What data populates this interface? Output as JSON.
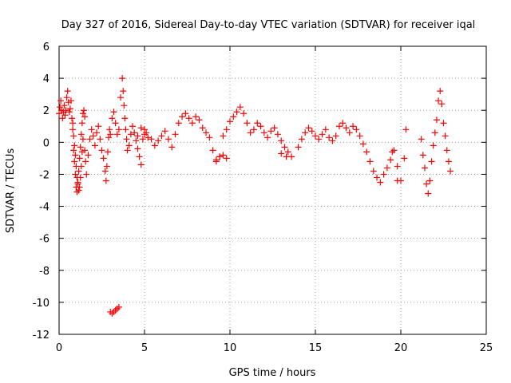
{
  "chart_data": {
    "type": "scatter",
    "title": "Day 327 of 2016, Sidereal Day-to-day VTEC variation (SDTVAR) for receiver iqal",
    "xlabel": "GPS time / hours",
    "ylabel": "SDTVAR / TECUs",
    "xlim": [
      0,
      25
    ],
    "ylim": [
      -12,
      6
    ],
    "xticks": [
      "0",
      "5",
      "10",
      "15",
      "20",
      "25"
    ],
    "yticks": [
      "6",
      "4",
      "2",
      "0",
      "-2",
      "-4",
      "-6",
      "-8",
      "-10",
      "-12"
    ],
    "grid": true,
    "marker": "+",
    "color": "#ff0000",
    "series": [
      {
        "name": "SDTVAR",
        "x": [
          0.0,
          0.05,
          0.1,
          0.15,
          0.2,
          0.25,
          0.3,
          0.35,
          0.4,
          0.45,
          0.5,
          0.55,
          0.6,
          0.65,
          0.7,
          0.75,
          0.8,
          0.85,
          0.9,
          0.95,
          1.0,
          1.05,
          1.1,
          1.15,
          1.2,
          1.25,
          1.3,
          1.35,
          1.4,
          1.45,
          1.5,
          0.8,
          0.85,
          0.9,
          0.95,
          1.0,
          1.05,
          1.1,
          1.15,
          1.2,
          1.25,
          1.3,
          1.35,
          1.4,
          1.5,
          1.55,
          1.6,
          1.7,
          1.8,
          1.9,
          2.0,
          2.1,
          2.2,
          2.3,
          2.4,
          2.5,
          2.6,
          2.7,
          2.75,
          2.8,
          2.85,
          2.9,
          2.95,
          3.0,
          3.1,
          3.2,
          3.3,
          3.4,
          3.5,
          3.6,
          3.7,
          3.75,
          3.8,
          3.85,
          3.9,
          3.95,
          4.0,
          4.1,
          4.2,
          4.3,
          4.4,
          4.5,
          4.6,
          4.7,
          4.8,
          4.9,
          5.0,
          5.1,
          5.2,
          5.4,
          5.6,
          5.8,
          6.0,
          6.2,
          6.4,
          6.6,
          6.8,
          7.0,
          7.2,
          7.4,
          7.6,
          7.8,
          8.0,
          8.2,
          8.4,
          8.6,
          8.8,
          9.0,
          9.2,
          9.4,
          9.6,
          9.8,
          10.0,
          10.2,
          10.4,
          10.6,
          10.8,
          11.0,
          11.2,
          11.4,
          11.6,
          11.8,
          12.0,
          12.2,
          12.4,
          12.6,
          12.8,
          13.0,
          13.2,
          13.4,
          13.6,
          14.0,
          14.2,
          14.4,
          14.6,
          14.8,
          15.0,
          15.2,
          15.4,
          15.6,
          15.8,
          16.0,
          16.2,
          16.4,
          16.6,
          16.8,
          17.0,
          17.2,
          17.4,
          17.6,
          17.8,
          18.0,
          18.2,
          18.4,
          18.6,
          18.8,
          19.0,
          19.2,
          19.4,
          19.6,
          19.8,
          20.0,
          20.2,
          20.3,
          21.2,
          21.3,
          21.4,
          21.5,
          21.6,
          21.7,
          21.8,
          21.9,
          22.0,
          22.1,
          22.2,
          22.3,
          22.4,
          22.5,
          22.6,
          22.7,
          22.8,
          22.9,
          3.0,
          3.1,
          3.2,
          3.3,
          3.4,
          3.5,
          9.2,
          9.4,
          9.6,
          9.8,
          13.0,
          13.3,
          19.5,
          19.8,
          4.6,
          4.8,
          5.0
        ],
        "y": [
          1.8,
          2.2,
          2.6,
          2.0,
          1.5,
          1.9,
          2.3,
          1.7,
          2.0,
          2.8,
          3.2,
          2.5,
          1.9,
          2.1,
          2.6,
          1.5,
          0.8,
          -0.5,
          -1.2,
          -2.0,
          -2.8,
          -3.1,
          -2.5,
          -1.8,
          -1.0,
          -0.3,
          0.5,
          1.2,
          1.8,
          2.0,
          1.6,
          1.2,
          0.4,
          -0.2,
          -0.8,
          -1.5,
          -2.2,
          -2.6,
          -3.0,
          -2.8,
          -2.2,
          -1.5,
          -0.6,
          0.2,
          -0.5,
          -1.2,
          -2.0,
          -0.8,
          0.2,
          0.8,
          0.4,
          -0.2,
          0.6,
          1.0,
          0.2,
          -0.5,
          -1.0,
          -1.8,
          -2.4,
          -1.5,
          -0.6,
          0.3,
          0.8,
          0.5,
          1.5,
          1.9,
          1.2,
          0.5,
          0.8,
          2.8,
          4.0,
          3.2,
          2.3,
          1.5,
          0.8,
          0.2,
          -0.5,
          -0.2,
          0.5,
          1.0,
          0.6,
          0.1,
          -0.4,
          -0.9,
          -1.4,
          0.2,
          0.8,
          0.6,
          0.3,
          0.2,
          -0.2,
          0.1,
          0.4,
          0.7,
          0.2,
          -0.3,
          0.5,
          1.2,
          1.6,
          1.8,
          1.5,
          1.2,
          1.6,
          1.4,
          0.9,
          0.6,
          0.3,
          -0.5,
          -1.1,
          -0.9,
          0.4,
          0.8,
          1.3,
          1.6,
          1.9,
          2.2,
          1.8,
          1.2,
          0.6,
          0.8,
          1.2,
          1.0,
          0.6,
          0.3,
          0.7,
          0.9,
          0.5,
          0.1,
          -0.3,
          -0.6,
          -0.9,
          -0.3,
          0.2,
          0.6,
          0.9,
          0.7,
          0.4,
          0.2,
          0.5,
          0.8,
          0.3,
          0.1,
          0.4,
          1.0,
          1.2,
          0.9,
          0.6,
          1.0,
          0.8,
          0.4,
          -0.1,
          -0.6,
          -1.2,
          -1.8,
          -2.2,
          -2.5,
          -2.0,
          -1.6,
          -1.1,
          -0.5,
          -1.5,
          -2.4,
          -1.0,
          0.8,
          0.2,
          -0.8,
          -1.6,
          -2.6,
          -3.2,
          -2.4,
          -1.2,
          -0.2,
          0.6,
          1.4,
          2.6,
          3.2,
          2.4,
          1.2,
          0.4,
          -0.5,
          -1.2,
          -1.8,
          -10.6,
          -10.7,
          -10.6,
          -10.5,
          -10.4,
          -10.3,
          -1.2,
          -0.9,
          -0.8,
          -1.0,
          -0.7,
          -0.9,
          -0.6,
          -2.4,
          0.4,
          0.9,
          0.5
        ]
      }
    ]
  }
}
